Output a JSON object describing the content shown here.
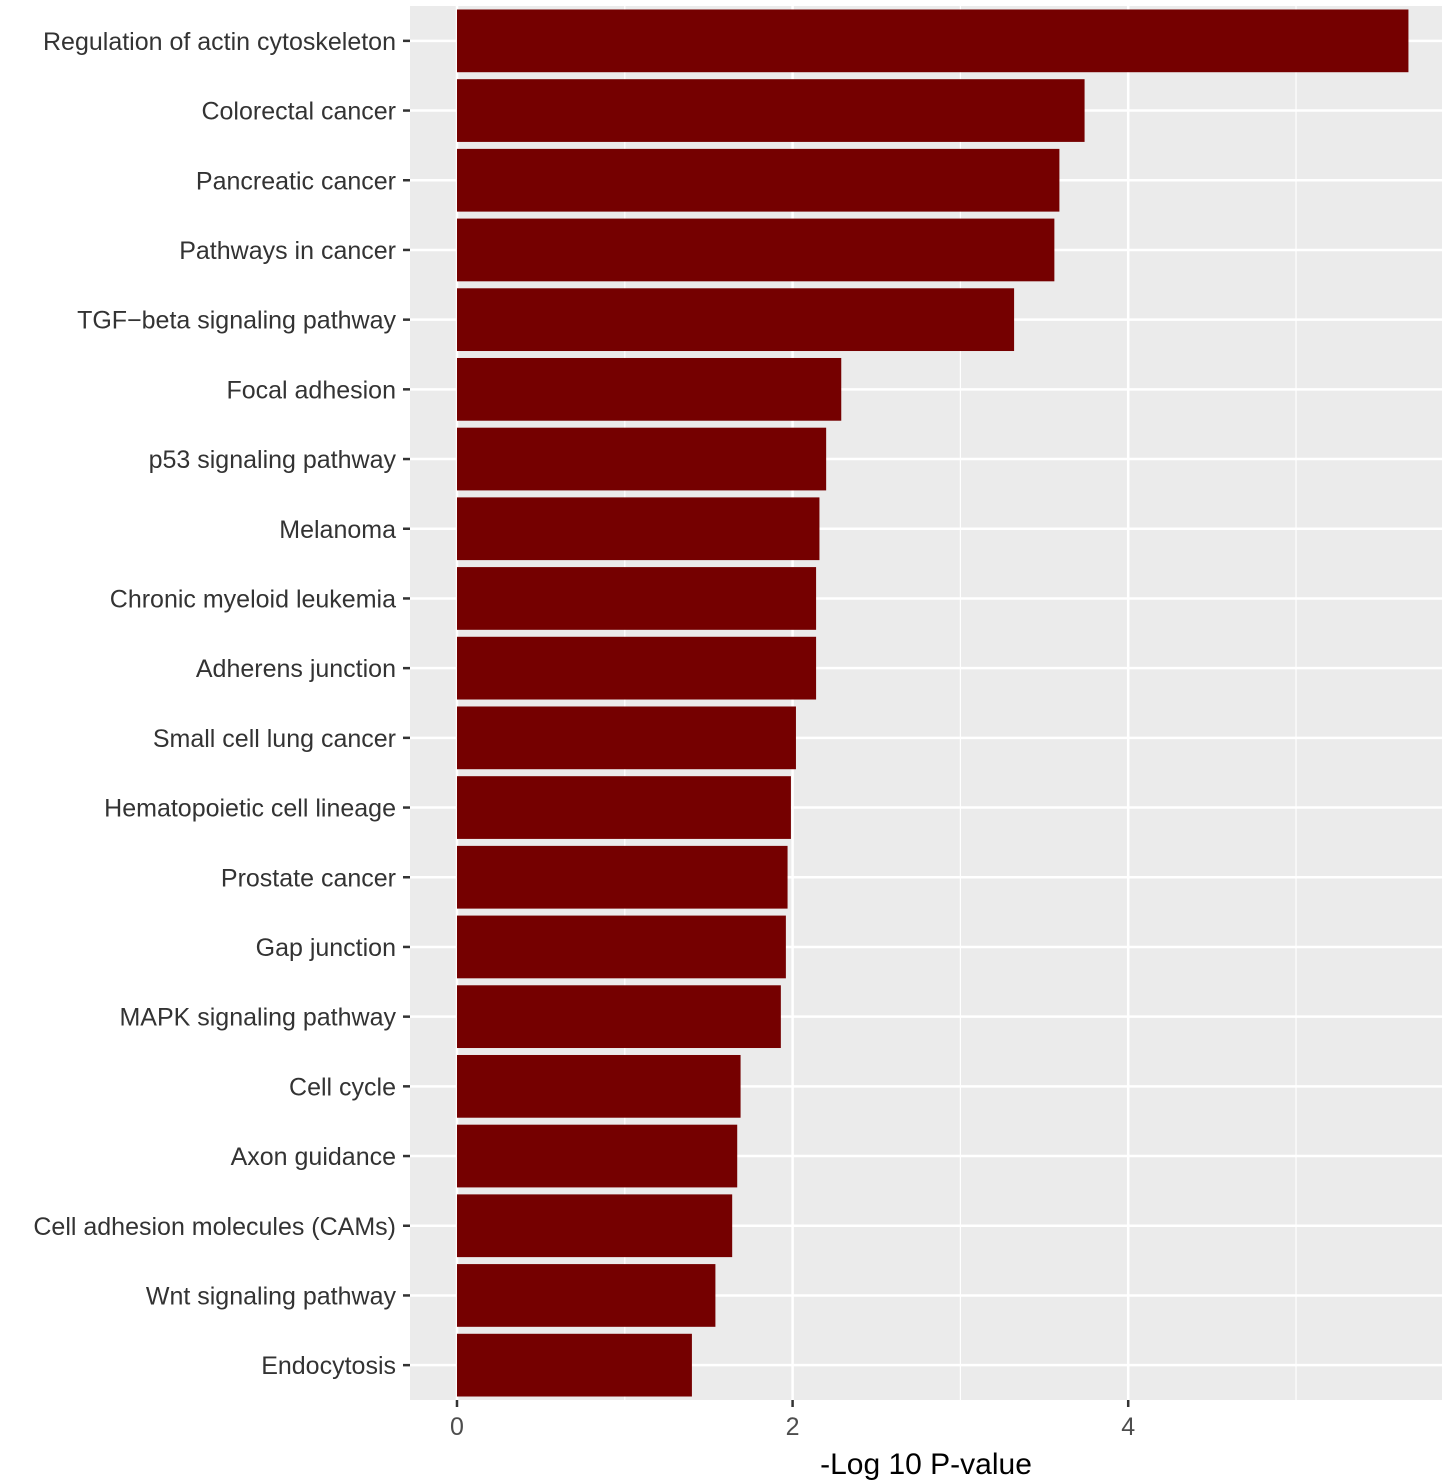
{
  "chart_data": {
    "type": "bar",
    "orientation": "horizontal",
    "title": "",
    "xlabel": "-Log 10 P-value",
    "ylabel": "",
    "xlim": [
      -0.28,
      5.87
    ],
    "xticks": [
      0,
      2,
      4
    ],
    "grid": true,
    "legend": "none",
    "bar_color": "#750000",
    "panel_color": "#ebebeb",
    "categories": [
      "Regulation of actin cytoskeleton",
      "Colorectal cancer",
      "Pancreatic cancer",
      "Pathways in cancer",
      "TGF−beta signaling pathway",
      "Focal adhesion",
      "p53 signaling pathway",
      "Melanoma",
      "Chronic myeloid leukemia",
      "Adherens junction",
      "Small cell lung cancer",
      "Hematopoietic cell lineage",
      "Prostate cancer",
      "Gap junction",
      "MAPK signaling pathway",
      "Cell cycle",
      "Axon guidance",
      "Cell adhesion molecules (CAMs)",
      "Wnt signaling pathway",
      "Endocytosis"
    ],
    "values": [
      5.67,
      3.74,
      3.59,
      3.56,
      3.32,
      2.29,
      2.2,
      2.16,
      2.14,
      2.14,
      2.02,
      1.99,
      1.97,
      1.96,
      1.93,
      1.69,
      1.67,
      1.64,
      1.54,
      1.4
    ]
  }
}
